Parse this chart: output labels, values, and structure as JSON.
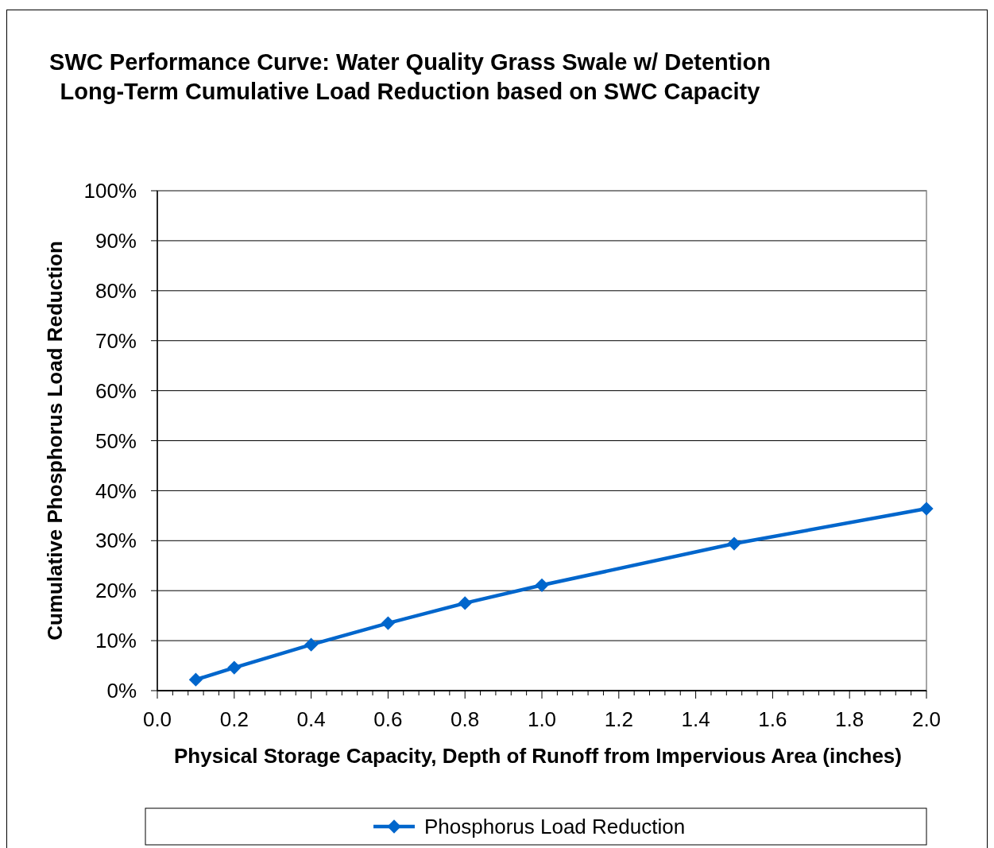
{
  "chart_data": {
    "type": "line",
    "title": "SWC Performance Curve: Water Quality Grass Swale w/ Detention Long-Term Cumulative Load Reduction based on SWC Capacity",
    "xlabel": "Physical Storage Capacity, Depth of Runoff  from Impervious Area (inches)",
    "ylabel": "Cumulative Phosphorus Load Reduction",
    "x": [
      0.1,
      0.2,
      0.4,
      0.6,
      0.8,
      1.0,
      1.5,
      2.0
    ],
    "series": [
      {
        "name": "Phosphorus Load Reduction",
        "color": "#0066cc",
        "values": [
          2.2,
          4.6,
          9.2,
          13.5,
          17.5,
          21.1,
          29.4,
          36.4
        ]
      }
    ],
    "xlim": [
      0,
      2
    ],
    "ylim": [
      0,
      100
    ],
    "xticks": [
      {
        "value": 0,
        "label": "0.0"
      },
      {
        "value": 0.04,
        "label": null
      },
      {
        "value": 0.08,
        "label": null
      },
      {
        "value": 0.12,
        "label": null
      },
      {
        "value": 0.16,
        "label": null
      },
      {
        "value": 0.2,
        "label": "0.2"
      },
      {
        "value": 0.24,
        "label": null
      },
      {
        "value": 0.28,
        "label": null
      },
      {
        "value": 0.32,
        "label": null
      },
      {
        "value": 0.36,
        "label": null
      },
      {
        "value": 0.4,
        "label": "0.4"
      },
      {
        "value": 0.44,
        "label": null
      },
      {
        "value": 0.48,
        "label": null
      },
      {
        "value": 0.52,
        "label": null
      },
      {
        "value": 0.56,
        "label": null
      },
      {
        "value": 0.6,
        "label": "0.6"
      },
      {
        "value": 0.64,
        "label": null
      },
      {
        "value": 0.68,
        "label": null
      },
      {
        "value": 0.72,
        "label": null
      },
      {
        "value": 0.76,
        "label": null
      },
      {
        "value": 0.8,
        "label": "0.8"
      },
      {
        "value": 0.84,
        "label": null
      },
      {
        "value": 0.88,
        "label": null
      },
      {
        "value": 0.92,
        "label": null
      },
      {
        "value": 0.96,
        "label": null
      },
      {
        "value": 1.0,
        "label": "1.0"
      },
      {
        "value": 1.04,
        "label": null
      },
      {
        "value": 1.08,
        "label": null
      },
      {
        "value": 1.12,
        "label": null
      },
      {
        "value": 1.16,
        "label": null
      },
      {
        "value": 1.2,
        "label": "1.2"
      },
      {
        "value": 1.24,
        "label": null
      },
      {
        "value": 1.28,
        "label": null
      },
      {
        "value": 1.32,
        "label": null
      },
      {
        "value": 1.36,
        "label": null
      },
      {
        "value": 1.4,
        "label": "1.4"
      },
      {
        "value": 1.44,
        "label": null
      },
      {
        "value": 1.48,
        "label": null
      },
      {
        "value": 1.52,
        "label": null
      },
      {
        "value": 1.56,
        "label": null
      },
      {
        "value": 1.6,
        "label": "1.6"
      },
      {
        "value": 1.64,
        "label": null
      },
      {
        "value": 1.68,
        "label": null
      },
      {
        "value": 1.72,
        "label": null
      },
      {
        "value": 1.76,
        "label": null
      },
      {
        "value": 1.8,
        "label": "1.8"
      },
      {
        "value": 1.84,
        "label": null
      },
      {
        "value": 1.88,
        "label": null
      },
      {
        "value": 1.92,
        "label": null
      },
      {
        "value": 1.96,
        "label": null
      },
      {
        "value": 2.0,
        "label": "2.0"
      }
    ],
    "yticks": [
      {
        "value": 0,
        "label": "0%"
      },
      {
        "value": 10,
        "label": "10%"
      },
      {
        "value": 20,
        "label": "20%"
      },
      {
        "value": 30,
        "label": "30%"
      },
      {
        "value": 40,
        "label": "40%"
      },
      {
        "value": 50,
        "label": "50%"
      },
      {
        "value": 60,
        "label": "60%"
      },
      {
        "value": 70,
        "label": "70%"
      },
      {
        "value": 80,
        "label": "80%"
      },
      {
        "value": 90,
        "label": "90%"
      },
      {
        "value": 100,
        "label": "100%"
      }
    ],
    "grid": "y",
    "legend": "bottom",
    "marker": "diamond",
    "line_style": "solid"
  }
}
